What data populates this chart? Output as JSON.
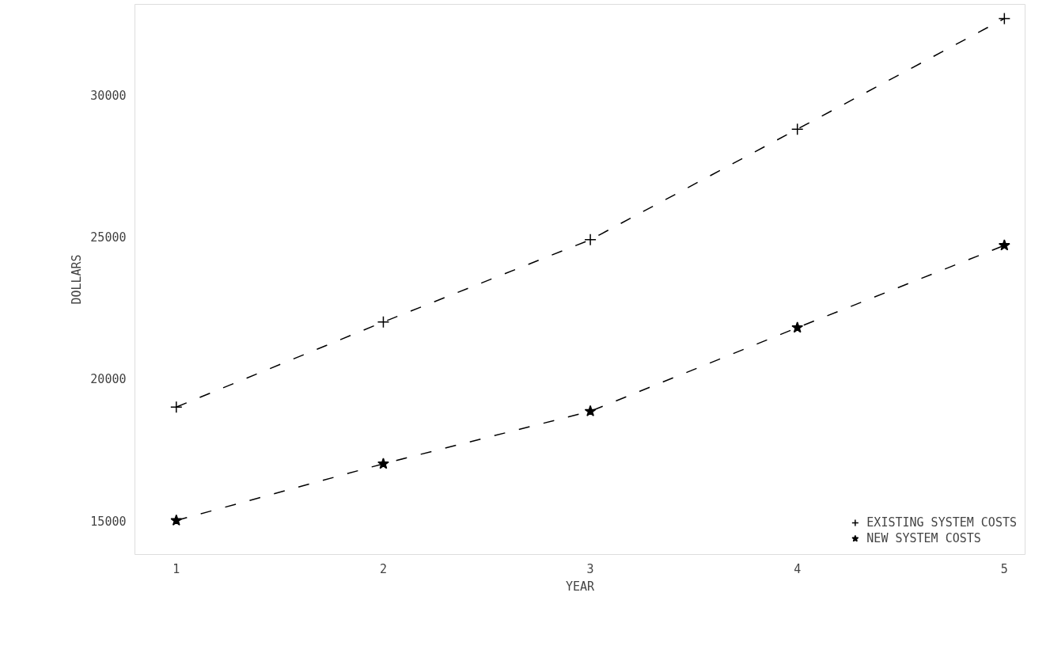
{
  "chart_data": {
    "type": "line",
    "xlabel": "YEAR",
    "ylabel": "DOLLARS",
    "x": [
      1,
      2,
      3,
      4,
      5
    ],
    "series": [
      {
        "name": "EXISTING SYSTEM COSTS",
        "color": "#000000",
        "marker": "cross",
        "values": [
          19000,
          22000,
          24900,
          28800,
          32700
        ]
      },
      {
        "name": "NEW SYSTEM COSTS",
        "color": "#000000",
        "marker": "star",
        "values": [
          15000,
          17000,
          18850,
          21800,
          24700
        ]
      }
    ],
    "xlim": [
      0.8,
      5.1
    ],
    "ylim": [
      13800,
      33200
    ],
    "xticks": [
      1,
      2,
      3,
      4,
      5
    ],
    "yticks": [
      15000,
      20000,
      25000,
      30000
    ],
    "line_style": "dashed",
    "grid": false,
    "legend": "bottom right"
  }
}
